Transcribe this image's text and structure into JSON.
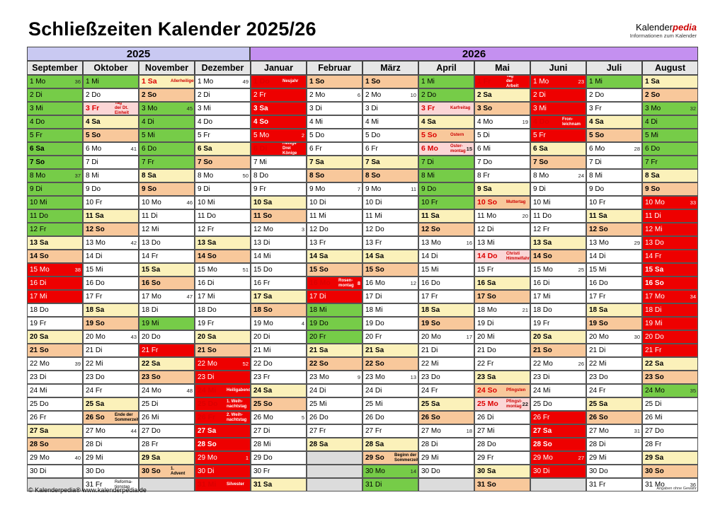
{
  "title": "Schließzeiten Kalender 2025/26",
  "logo": {
    "prefix": "Kalender",
    "brand": "pedia",
    "tagline": "Informationen zum Kalender"
  },
  "years": [
    "2025",
    "2026"
  ],
  "months": [
    {
      "name": "September",
      "year": 2025,
      "m": 9
    },
    {
      "name": "Oktober",
      "year": 2025,
      "m": 10
    },
    {
      "name": "November",
      "year": 2025,
      "m": 11
    },
    {
      "name": "Dezember",
      "year": 2025,
      "m": 12
    },
    {
      "name": "Januar",
      "year": 2026,
      "m": 1
    },
    {
      "name": "Februar",
      "year": 2026,
      "m": 2
    },
    {
      "name": "März",
      "year": 2026,
      "m": 3
    },
    {
      "name": "April",
      "year": 2026,
      "m": 4
    },
    {
      "name": "Mai",
      "year": 2026,
      "m": 5
    },
    {
      "name": "Juni",
      "year": 2026,
      "m": 6
    },
    {
      "name": "Juli",
      "year": 2026,
      "m": 7
    },
    {
      "name": "August",
      "year": 2026,
      "m": 8
    }
  ],
  "weekday_abbr": [
    "So",
    "Mo",
    "Di",
    "Mi",
    "Do",
    "Fr",
    "Sa"
  ],
  "holidays": {
    "2025-10-3": "Tag der Dt. Einheit",
    "2025-11-1": "Allerheiligen",
    "2025-12-24": "Heiligabend",
    "2025-12-25": "1. Weih-nachtstag",
    "2025-12-26": "2. Weih-nachtstag",
    "2025-12-31": "Silvester",
    "2026-1-1": "Neujahr",
    "2026-1-6": "Heilige Drei Könige",
    "2026-2-16": "Rosen-montag",
    "2026-4-3": "Karfreitag",
    "2026-4-5": "Ostern",
    "2026-4-6": "Oster-montag",
    "2026-5-1": "Tag der Arbeit",
    "2026-5-10": "Muttertag",
    "2026-5-14": "Christi Himmelfahrt",
    "2026-5-24": "Pfingsten",
    "2026-5-25": "Pfingst-montag",
    "2026-6-4": "Fron-leichnam"
  },
  "notes": {
    "2025-10-26": "Ende der Sommerzeit",
    "2025-11-30": "1. Advent",
    "2025-10-31": "Reforma-tionstag",
    "2026-3-29": "Beginn der Sommerzeit"
  },
  "closed_ranges": [
    [
      "2025-9-15",
      "2025-9-17"
    ],
    [
      "2025-11-21",
      "2025-11-21"
    ],
    [
      "2025-12-22",
      "2026-1-6"
    ],
    [
      "2026-2-16",
      "2026-2-17"
    ],
    [
      "2026-5-1",
      "2026-5-1"
    ],
    [
      "2026-6-1",
      "2026-6-5"
    ],
    [
      "2026-6-26",
      "2026-6-30"
    ],
    [
      "2026-8-10",
      "2026-8-21"
    ]
  ],
  "ferien_ranges": [
    [
      "2025-9-1",
      "2025-9-12"
    ],
    [
      "2025-10-1",
      "2025-10-1"
    ],
    [
      "2025-11-3",
      "2025-11-7"
    ],
    [
      "2025-11-19",
      "2025-11-19"
    ],
    [
      "2026-2-18",
      "2026-2-20"
    ],
    [
      "2026-3-30",
      "2026-3-31"
    ],
    [
      "2026-4-1",
      "2026-4-2"
    ],
    [
      "2026-4-7",
      "2026-4-10"
    ],
    [
      "2026-7-1",
      "2026-7-1"
    ],
    [
      "2026-8-3",
      "2026-8-7"
    ],
    [
      "2026-8-24",
      "2026-8-24"
    ]
  ],
  "footer": {
    "left": "© Kalenderpedia®   www.kalenderpedia.de",
    "right": "Angaben ohne Gewähr"
  }
}
